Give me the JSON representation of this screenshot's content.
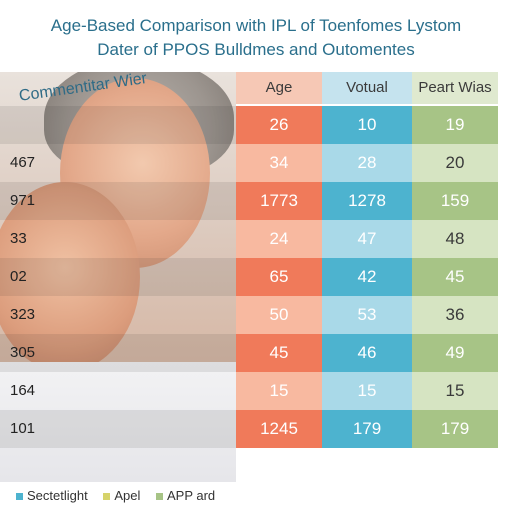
{
  "title": {
    "line1": "Age-Based Comparison with IPL of Toenfomes Lystom",
    "line2": "Dater of PPOS Bulldmes and Outomentes"
  },
  "overlay_label": "Commentitar Wier",
  "colors": {
    "age_dark": "#f07a5a",
    "age_light": "#f8b9a0",
    "votual_dark": "#4db3cf",
    "votual_light": "#a9d9e8",
    "pw_dark": "#a7c486",
    "pw_light": "#d6e4c2",
    "title": "#2a6f8c"
  },
  "chart_data": {
    "type": "table",
    "columns": [
      "Age",
      "Votual",
      "Peart Wias"
    ],
    "rows": [
      {
        "label": "",
        "values": [
          "26",
          "10",
          "19"
        ]
      },
      {
        "label": "467",
        "values": [
          "34",
          "28",
          "20"
        ]
      },
      {
        "label": "971",
        "values": [
          "1773",
          "1278",
          "159"
        ]
      },
      {
        "label": "33",
        "values": [
          "24",
          "47",
          "48"
        ]
      },
      {
        "label": "02",
        "values": [
          "65",
          "42",
          "45"
        ]
      },
      {
        "label": "323",
        "values": [
          "50",
          "53",
          "36"
        ]
      },
      {
        "label": "305",
        "values": [
          "45",
          "46",
          "49"
        ]
      },
      {
        "label": "164",
        "values": [
          "15",
          "15",
          "15"
        ]
      },
      {
        "label": "101",
        "values": [
          "1245",
          "179",
          "179"
        ]
      }
    ]
  },
  "legend": [
    {
      "label": "Sectetlight",
      "color": "#4db3cf"
    },
    {
      "label": "Apel",
      "color": "#d6d36a"
    },
    {
      "label": "APP ard",
      "color": "#a7c486"
    }
  ]
}
